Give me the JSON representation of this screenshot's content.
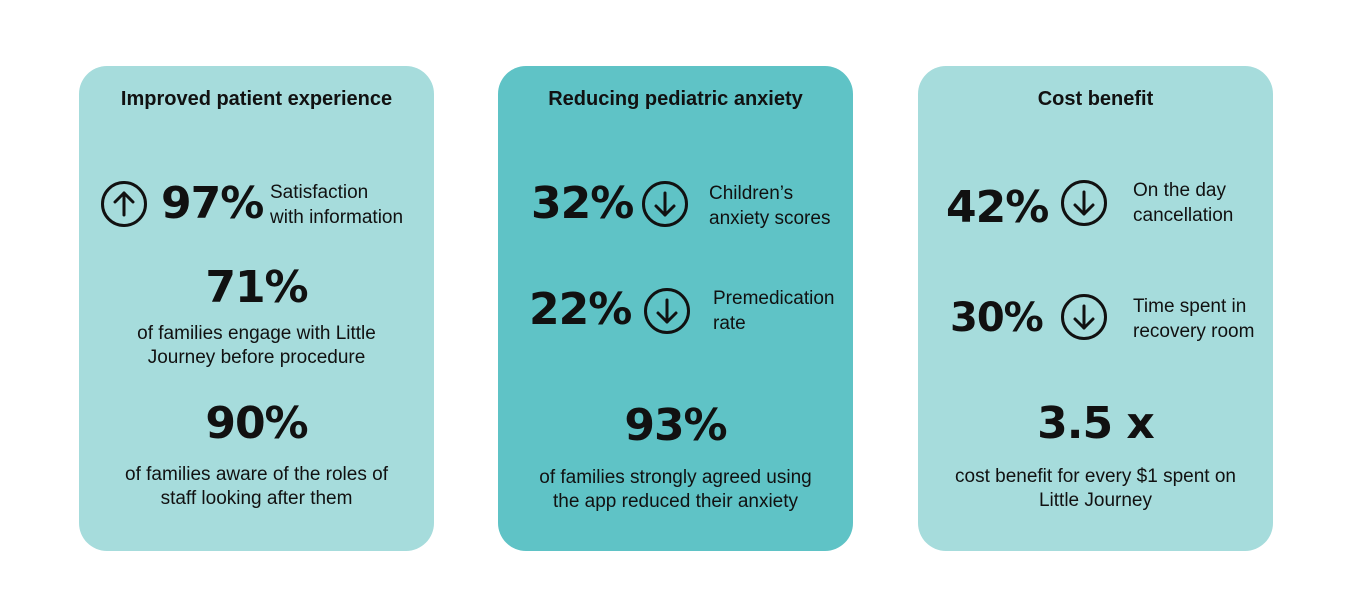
{
  "cards": [
    {
      "title": "Improved patient experience",
      "stat1": {
        "value": "97%",
        "label_line1": "Satisfaction",
        "label_line2": "with information",
        "icon": "arrow-up-circle-icon"
      },
      "stat2": {
        "value": "71%",
        "desc_line1": "of families engage with Little",
        "desc_line2": "Journey before procedure"
      },
      "stat3": {
        "value": "90%",
        "desc_line1": "of families aware of the roles of",
        "desc_line2": "staff looking after them"
      }
    },
    {
      "title": "Reducing pediatric anxiety",
      "stat1": {
        "value": "32%",
        "label_line1": "Children’s",
        "label_line2": "anxiety scores",
        "icon": "arrow-down-circle-icon"
      },
      "stat2": {
        "value": "22%",
        "label_line1": "Premedication",
        "label_line2": "rate",
        "icon": "arrow-down-circle-icon"
      },
      "stat3": {
        "value": "93%",
        "desc_line1": "of families strongly agreed using",
        "desc_line2": "the app reduced their anxiety"
      }
    },
    {
      "title": "Cost benefit",
      "stat1": {
        "value": "42%",
        "label_line1": "On the day",
        "label_line2": "cancellation",
        "icon": "arrow-down-circle-icon"
      },
      "stat2": {
        "value": "30%",
        "label_line1": "Time spent in",
        "label_line2": "recovery room",
        "icon": "arrow-down-circle-icon"
      },
      "stat3": {
        "value": "3.5 x",
        "desc_line1": "cost benefit for every $1 spent on",
        "desc_line2": "Little Journey"
      }
    }
  ],
  "colors": {
    "light_teal": "#a6dcdc",
    "dark_teal": "#5fc3c6",
    "text": "#111111"
  }
}
